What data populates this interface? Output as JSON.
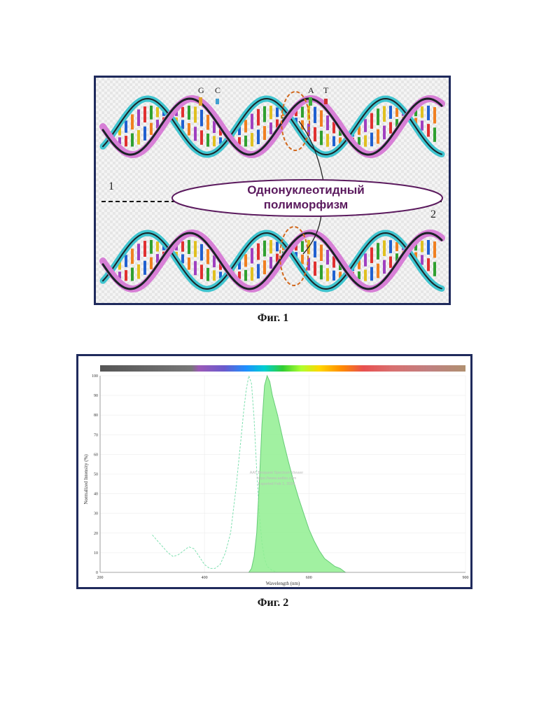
{
  "figure1": {
    "caption": "Фиг. 1",
    "base_labels_top": [
      "G",
      "C",
      "A",
      "T"
    ],
    "snp_label_line1": "Однонуклеотидный",
    "snp_label_line2": "полиморфизм",
    "strand_label_1": "1",
    "strand_label_2": "2",
    "colors": {
      "frame": "#1f2a5c",
      "label_text": "#5b1a5e",
      "helix_pink": "#d77fd6",
      "helix_cyan": "#3fc4cf",
      "helix_dark": "#1b2326",
      "snp_circle": "#d2691e"
    }
  },
  "figure2": {
    "caption": "Фиг. 2",
    "watermark": [
      "AAT Bioquest Spectrum Viewer",
      "https://www.aatbio.com",
      "Exported Feb 1, 2024"
    ],
    "chart_data": {
      "type": "area",
      "xlabel": "Wavelength (nm)",
      "ylabel": "Normalized Intensity (%)",
      "xlim": [
        200,
        900
      ],
      "ylim": [
        0,
        100
      ],
      "x_ticks": [
        200,
        400,
        600,
        900
      ],
      "y_ticks": [
        0,
        10,
        20,
        30,
        40,
        50,
        60,
        70,
        80,
        90,
        100
      ],
      "grid": true,
      "series": [
        {
          "style": "dashed",
          "color": "#7fe0b0",
          "x": [
            300,
            310,
            320,
            330,
            340,
            350,
            360,
            370,
            380,
            390,
            400,
            410,
            420,
            430,
            440,
            450,
            460,
            470,
            475,
            480,
            485,
            490,
            495,
            500,
            505,
            510,
            515,
            520,
            530,
            540,
            550
          ],
          "y": [
            19,
            16,
            13,
            10,
            8,
            9,
            11,
            13,
            12,
            8,
            4,
            2,
            2,
            4,
            10,
            20,
            42,
            68,
            82,
            93,
            100,
            96,
            78,
            52,
            30,
            15,
            7,
            3,
            1,
            0,
            0
          ]
        },
        {
          "style": "filled",
          "color": "#90ee90",
          "x": [
            485,
            490,
            495,
            500,
            505,
            510,
            515,
            520,
            525,
            530,
            540,
            550,
            560,
            570,
            580,
            590,
            600,
            610,
            620,
            630,
            640,
            650,
            660,
            670
          ],
          "y": [
            0,
            2,
            8,
            20,
            45,
            75,
            95,
            100,
            97,
            90,
            80,
            68,
            57,
            47,
            38,
            30,
            22,
            16,
            11,
            7,
            5,
            3,
            2,
            0
          ]
        }
      ]
    }
  }
}
